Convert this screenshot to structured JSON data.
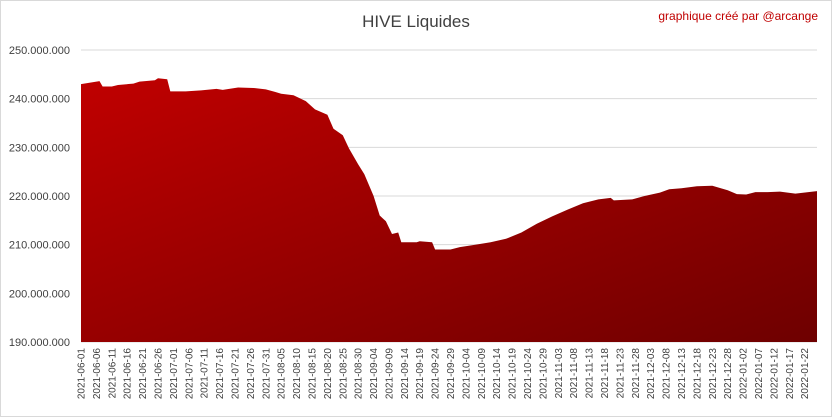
{
  "chart_data": {
    "type": "area",
    "title": "HIVE Liquides",
    "annotation": "graphique créé par @arcange",
    "xlabel": "",
    "ylabel": "",
    "ylim": [
      190000000,
      250000000
    ],
    "y_ticks": [
      "190.000.000",
      "200.000.000",
      "210.000.000",
      "220.000.000",
      "230.000.000",
      "240.000.000",
      "250.000.000"
    ],
    "y_tick_values": [
      190000000,
      200000000,
      210000000,
      220000000,
      230000000,
      240000000,
      250000000
    ],
    "x_ticks": [
      "2021-06-01",
      "2021-06-06",
      "2021-06-11",
      "2021-06-16",
      "2021-06-21",
      "2021-06-26",
      "2021-07-01",
      "2021-07-06",
      "2021-07-11",
      "2021-07-16",
      "2021-07-21",
      "2021-07-26",
      "2021-07-31",
      "2021-08-05",
      "2021-08-10",
      "2021-08-15",
      "2021-08-20",
      "2021-08-25",
      "2021-08-30",
      "2021-09-04",
      "2021-09-09",
      "2021-09-14",
      "2021-09-19",
      "2021-09-24",
      "2021-09-29",
      "2021-10-04",
      "2021-10-09",
      "2021-10-14",
      "2021-10-19",
      "2021-10-24",
      "2021-10-29",
      "2021-11-03",
      "2021-11-08",
      "2021-11-13",
      "2021-11-18",
      "2021-11-23",
      "2021-11-28",
      "2021-12-03",
      "2021-12-08",
      "2021-12-13",
      "2021-12-18",
      "2021-12-23",
      "2021-12-28",
      "2022-01-02",
      "2022-01-07",
      "2022-01-12",
      "2022-01-17",
      "2022-01-22"
    ],
    "grid": true,
    "colors": {
      "fill_top": "#c00000",
      "fill_bottom": "#6e0000",
      "grid": "#d9d9d9"
    },
    "series": [
      {
        "values": [
          {
            "x": "2021-06-01",
            "y": 243000000
          },
          {
            "x": "2021-06-04",
            "y": 243300000
          },
          {
            "x": "2021-06-07",
            "y": 243600000
          },
          {
            "x": "2021-06-08",
            "y": 242500000
          },
          {
            "x": "2021-06-11",
            "y": 242500000
          },
          {
            "x": "2021-06-13",
            "y": 242800000
          },
          {
            "x": "2021-06-18",
            "y": 243100000
          },
          {
            "x": "2021-06-20",
            "y": 243500000
          },
          {
            "x": "2021-06-25",
            "y": 243800000
          },
          {
            "x": "2021-06-26",
            "y": 244200000
          },
          {
            "x": "2021-06-29",
            "y": 244000000
          },
          {
            "x": "2021-06-30",
            "y": 241500000
          },
          {
            "x": "2021-07-05",
            "y": 241500000
          },
          {
            "x": "2021-07-10",
            "y": 241700000
          },
          {
            "x": "2021-07-15",
            "y": 242000000
          },
          {
            "x": "2021-07-17",
            "y": 241800000
          },
          {
            "x": "2021-07-22",
            "y": 242300000
          },
          {
            "x": "2021-07-27",
            "y": 242200000
          },
          {
            "x": "2021-07-31",
            "y": 241900000
          },
          {
            "x": "2021-08-03",
            "y": 241400000
          },
          {
            "x": "2021-08-05",
            "y": 241000000
          },
          {
            "x": "2021-08-09",
            "y": 240700000
          },
          {
            "x": "2021-08-13",
            "y": 239500000
          },
          {
            "x": "2021-08-16",
            "y": 237800000
          },
          {
            "x": "2021-08-20",
            "y": 236700000
          },
          {
            "x": "2021-08-22",
            "y": 233800000
          },
          {
            "x": "2021-08-25",
            "y": 232500000
          },
          {
            "x": "2021-08-27",
            "y": 229800000
          },
          {
            "x": "2021-08-30",
            "y": 226500000
          },
          {
            "x": "2021-09-01",
            "y": 224500000
          },
          {
            "x": "2021-09-04",
            "y": 220000000
          },
          {
            "x": "2021-09-06",
            "y": 216000000
          },
          {
            "x": "2021-09-08",
            "y": 214800000
          },
          {
            "x": "2021-09-10",
            "y": 212200000
          },
          {
            "x": "2021-09-12",
            "y": 212500000
          },
          {
            "x": "2021-09-13",
            "y": 210500000
          },
          {
            "x": "2021-09-18",
            "y": 210500000
          },
          {
            "x": "2021-09-19",
            "y": 210700000
          },
          {
            "x": "2021-09-23",
            "y": 210500000
          },
          {
            "x": "2021-09-24",
            "y": 209000000
          },
          {
            "x": "2021-09-29",
            "y": 209000000
          },
          {
            "x": "2021-10-02",
            "y": 209500000
          },
          {
            "x": "2021-10-07",
            "y": 210000000
          },
          {
            "x": "2021-10-12",
            "y": 210500000
          },
          {
            "x": "2021-10-17",
            "y": 211200000
          },
          {
            "x": "2021-10-22",
            "y": 212500000
          },
          {
            "x": "2021-10-27",
            "y": 214300000
          },
          {
            "x": "2021-11-01",
            "y": 215800000
          },
          {
            "x": "2021-11-06",
            "y": 217200000
          },
          {
            "x": "2021-11-11",
            "y": 218500000
          },
          {
            "x": "2021-11-16",
            "y": 219300000
          },
          {
            "x": "2021-11-20",
            "y": 219600000
          },
          {
            "x": "2021-11-21",
            "y": 219100000
          },
          {
            "x": "2021-11-27",
            "y": 219300000
          },
          {
            "x": "2021-12-01",
            "y": 220000000
          },
          {
            "x": "2021-12-06",
            "y": 220700000
          },
          {
            "x": "2021-12-09",
            "y": 221400000
          },
          {
            "x": "2021-12-13",
            "y": 221600000
          },
          {
            "x": "2021-12-18",
            "y": 222000000
          },
          {
            "x": "2021-12-23",
            "y": 222100000
          },
          {
            "x": "2021-12-28",
            "y": 221200000
          },
          {
            "x": "2021-12-31",
            "y": 220400000
          },
          {
            "x": "2022-01-03",
            "y": 220300000
          },
          {
            "x": "2022-01-06",
            "y": 220800000
          },
          {
            "x": "2022-01-10",
            "y": 220800000
          },
          {
            "x": "2022-01-14",
            "y": 220900000
          },
          {
            "x": "2022-01-19",
            "y": 220500000
          },
          {
            "x": "2022-01-26",
            "y": 221000000
          }
        ]
      }
    ]
  }
}
